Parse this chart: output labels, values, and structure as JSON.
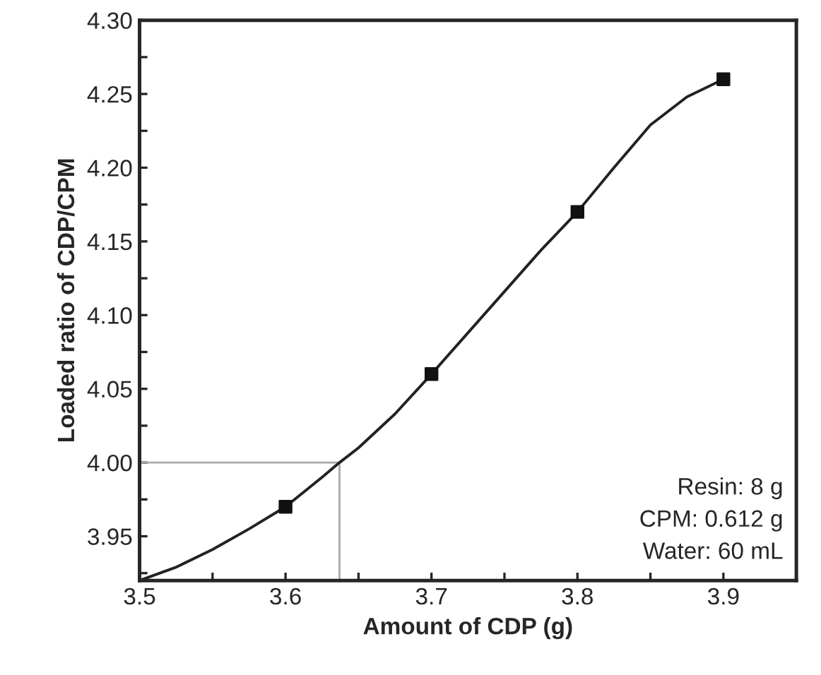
{
  "chart_data": {
    "type": "line",
    "xlabel": "Amount of CDP (g)",
    "ylabel": "Loaded ratio of CDP/CPM",
    "xlim": [
      3.5,
      3.95
    ],
    "ylim": [
      3.92,
      4.3
    ],
    "xticks": [
      3.5,
      {
        "value": 3.55,
        "label": null
      },
      3.6,
      {
        "value": 3.65,
        "label": null
      },
      3.7,
      {
        "value": 3.75,
        "label": null
      },
      3.8,
      {
        "value": 3.85,
        "label": null
      },
      3.9
    ],
    "yticks": [
      {
        "value": 3.925,
        "label": null
      },
      3.95,
      {
        "value": 3.975,
        "label": null
      },
      "4.00",
      {
        "value": 4.025,
        "label": null
      },
      4.05,
      {
        "value": 4.075,
        "label": null
      },
      "4.10",
      {
        "value": 4.125,
        "label": null
      },
      4.15,
      {
        "value": 4.175,
        "label": null
      },
      "4.20",
      {
        "value": 4.225,
        "label": null
      },
      4.25,
      {
        "value": 4.275,
        "label": null
      },
      "4.30"
    ],
    "grid": false,
    "legend": false,
    "series": [
      {
        "color": "#222222",
        "marker": "none",
        "x": [
          3.5,
          3.525,
          3.55,
          3.575,
          3.6,
          3.625,
          3.637,
          3.65,
          3.675,
          3.7,
          3.725,
          3.75,
          3.775,
          3.8,
          3.825,
          3.85,
          3.875,
          3.9
        ],
        "values": [
          3.92,
          3.929,
          3.941,
          3.955,
          3.97,
          3.99,
          4.0,
          4.01,
          4.033,
          4.06,
          4.088,
          4.116,
          4.144,
          4.17,
          4.2,
          4.229,
          4.248,
          4.26
        ]
      },
      {
        "type": "scatter",
        "color": "#111111",
        "marker": "square",
        "x": [
          3.6,
          3.7,
          3.8,
          3.9
        ],
        "values": [
          3.97,
          4.06,
          4.17,
          4.26
        ]
      },
      {
        "color": "#aaaaaa",
        "marker": "none",
        "x": [
          3.5,
          3.637,
          3.637
        ],
        "values": [
          4.0,
          4.0,
          3.92
        ]
      }
    ],
    "annotations": [
      "Resin: 8 g\nCPM: 0.612 g\nWater: 60 mL"
    ]
  }
}
